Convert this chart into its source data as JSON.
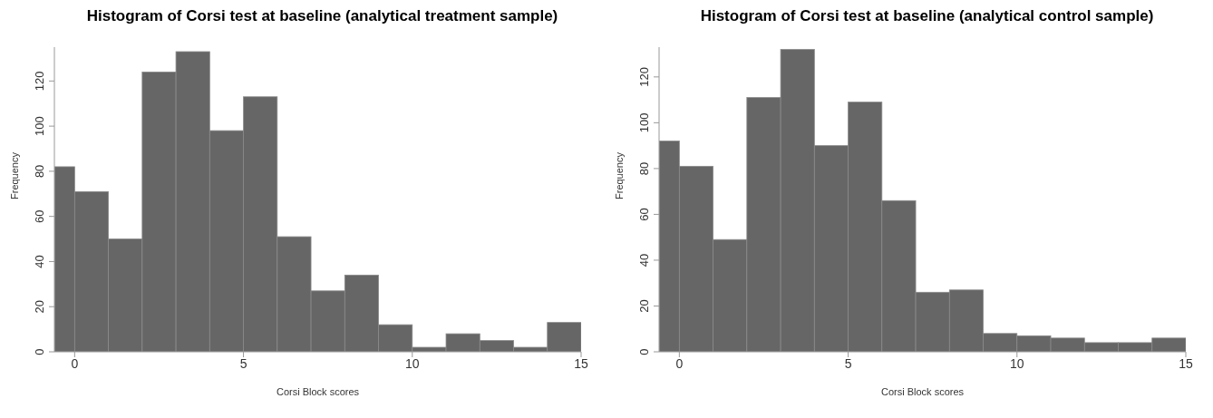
{
  "chart_data": [
    {
      "type": "histogram",
      "title": "Histogram of Corsi test at baseline (analytical treatment sample)",
      "xlabel": "Corsi Block scores",
      "ylabel": "Frequency",
      "bins": [
        -0.6,
        0,
        1,
        2,
        3,
        4,
        5,
        6,
        7,
        8,
        9,
        10,
        11,
        12,
        13,
        14,
        15
      ],
      "values": [
        82,
        71,
        50,
        124,
        133,
        98,
        113,
        51,
        27,
        34,
        12,
        2,
        8,
        5,
        2,
        13
      ],
      "color": "#666666",
      "xlim": [
        -0.6,
        15
      ],
      "ylim": [
        0,
        135
      ],
      "xticks": [
        0,
        5,
        10,
        15
      ],
      "yticks": [
        0,
        20,
        40,
        60,
        80,
        100,
        120
      ]
    },
    {
      "type": "histogram",
      "title": "Histogram of Corsi test at baseline (analytical control sample)",
      "xlabel": "Corsi Block scores",
      "ylabel": "Frequency",
      "bins": [
        -0.6,
        0,
        1,
        2,
        3,
        4,
        5,
        6,
        7,
        8,
        9,
        10,
        11,
        12,
        13,
        14,
        15
      ],
      "values": [
        92,
        81,
        49,
        111,
        132,
        90,
        109,
        66,
        26,
        27,
        8,
        7,
        6,
        4,
        4,
        6
      ],
      "color": "#666666",
      "xlim": [
        -0.6,
        15
      ],
      "ylim": [
        0,
        133
      ],
      "xticks": [
        0,
        5,
        10,
        15
      ],
      "yticks": [
        0,
        20,
        40,
        60,
        80,
        100,
        120
      ]
    }
  ]
}
